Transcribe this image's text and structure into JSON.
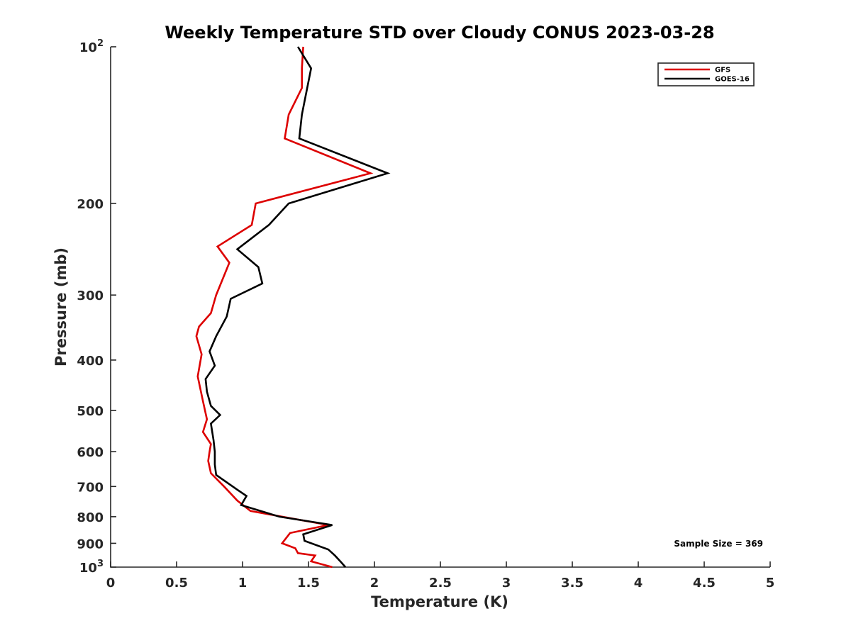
{
  "chart_data": {
    "type": "line",
    "title": "Weekly Temperature STD over Cloudy CONUS 2023-03-28",
    "xlabel": "Temperature (K)",
    "ylabel": "Pressure (mb)",
    "xlim": [
      0,
      5
    ],
    "ylim": [
      100,
      1000
    ],
    "y_scale": "log",
    "y_reversed": true,
    "grid": false,
    "legend_position": "top-right",
    "x_ticks": [
      {
        "value": 0,
        "label": "0"
      },
      {
        "value": 0.5,
        "label": "0.5"
      },
      {
        "value": 1,
        "label": "1"
      },
      {
        "value": 1.5,
        "label": "1.5"
      },
      {
        "value": 2,
        "label": "2"
      },
      {
        "value": 2.5,
        "label": "2.5"
      },
      {
        "value": 3,
        "label": "3"
      },
      {
        "value": 3.5,
        "label": "3.5"
      },
      {
        "value": 4,
        "label": "4"
      },
      {
        "value": 4.5,
        "label": "4.5"
      },
      {
        "value": 5,
        "label": "5"
      }
    ],
    "y_ticks": [
      {
        "value": 100,
        "base": "10",
        "exp": "2"
      },
      {
        "value": 200,
        "label": "200"
      },
      {
        "value": 300,
        "label": "300"
      },
      {
        "value": 400,
        "label": "400"
      },
      {
        "value": 500,
        "label": "500"
      },
      {
        "value": 600,
        "label": "600"
      },
      {
        "value": 700,
        "label": "700"
      },
      {
        "value": 800,
        "label": "800"
      },
      {
        "value": 900,
        "label": "900"
      },
      {
        "value": 1000,
        "base": "10",
        "exp": "3"
      }
    ],
    "series": [
      {
        "name": "GFS",
        "color": "#dd0000",
        "x": [
          1.46,
          1.45,
          1.45,
          1.35,
          1.32,
          1.97,
          1.1,
          1.07,
          0.81,
          0.9,
          0.8,
          0.76,
          0.67,
          0.65,
          0.69,
          0.66,
          0.7,
          0.73,
          0.7,
          0.76,
          0.75,
          0.74,
          0.76,
          0.86,
          0.96,
          1.06,
          1.65,
          1.36,
          1.3,
          1.4,
          1.42,
          1.55,
          1.52,
          1.68
        ],
        "y": [
          100,
          110,
          120,
          135,
          150,
          175,
          200,
          220,
          242,
          260,
          300,
          325,
          345,
          360,
          390,
          430,
          480,
          520,
          550,
          580,
          600,
          625,
          660,
          700,
          745,
          780,
          830,
          860,
          900,
          920,
          940,
          950,
          975,
          1000
        ]
      },
      {
        "name": "GOES-16",
        "color": "#000000",
        "x": [
          1.42,
          1.52,
          1.45,
          1.43,
          2.1,
          1.35,
          1.2,
          0.96,
          1.12,
          1.15,
          0.91,
          0.88,
          0.8,
          0.75,
          0.79,
          0.72,
          0.73,
          0.76,
          0.83,
          0.76,
          0.78,
          0.79,
          0.79,
          0.8,
          0.96,
          1.03,
          0.99,
          1.28,
          1.68,
          1.46,
          1.47,
          1.65,
          1.7,
          1.75,
          1.78
        ],
        "y": [
          100,
          110,
          135,
          150,
          175,
          200,
          220,
          245,
          265,
          285,
          305,
          330,
          360,
          385,
          410,
          435,
          460,
          490,
          510,
          530,
          570,
          600,
          635,
          665,
          710,
          730,
          760,
          800,
          830,
          865,
          890,
          925,
          950,
          980,
          1000
        ]
      }
    ],
    "annotation": "Sample Size = 369"
  }
}
